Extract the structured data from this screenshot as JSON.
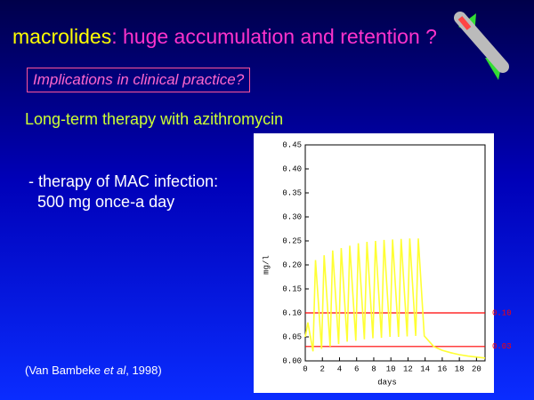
{
  "slide": {
    "title_main": "macrolides",
    "title_rest": ": huge accumulation and retention ?",
    "question": "Implications in clinical practice?",
    "subtitle": "Long-term therapy with azithromycin",
    "bullet_line1": "- therapy of MAC infection:",
    "bullet_line2": "500 mg once-a day",
    "citation_pre": "(Van Bambeke ",
    "citation_ital": "et al",
    "citation_post": ", 1998)"
  },
  "chart_data": {
    "type": "line",
    "x_label": "days",
    "y_label": "mg/l",
    "color": "#ffff33",
    "x": [
      0,
      0.3,
      0.9,
      1.2,
      1.9,
      2.2,
      2.9,
      3.2,
      3.9,
      4.2,
      4.9,
      5.2,
      5.9,
      6.2,
      6.9,
      7.2,
      7.9,
      8.2,
      8.9,
      9.2,
      9.9,
      10.2,
      10.9,
      11.2,
      11.9,
      12.2,
      12.9,
      13.2,
      13.9,
      15,
      16,
      17,
      18,
      19,
      20,
      21
    ],
    "values": [
      0.05,
      0.08,
      0.02,
      0.21,
      0.025,
      0.22,
      0.03,
      0.23,
      0.035,
      0.235,
      0.04,
      0.24,
      0.042,
      0.245,
      0.045,
      0.248,
      0.047,
      0.25,
      0.048,
      0.252,
      0.05,
      0.253,
      0.05,
      0.254,
      0.051,
      0.255,
      0.052,
      0.255,
      0.052,
      0.03,
      0.022,
      0.017,
      0.013,
      0.01,
      0.008,
      0.006
    ],
    "xlim": [
      0,
      21
    ],
    "xticks": [
      0,
      2,
      4,
      6,
      8,
      10,
      12,
      14,
      16,
      18,
      20
    ],
    "ylim": [
      0,
      0.45
    ],
    "yticks": [
      {
        "value": 0,
        "label": "0.00"
      },
      {
        "value": 0.05,
        "label": "0.05"
      },
      {
        "value": 0.1,
        "label": "0.10"
      },
      {
        "value": 0.15,
        "label": "0.15"
      },
      {
        "value": 0.2,
        "label": "0.20"
      },
      {
        "value": 0.25,
        "label": "0.25"
      },
      {
        "value": 0.3,
        "label": "0.30"
      },
      {
        "value": 0.35,
        "label": "0.35"
      },
      {
        "value": 0.4,
        "label": "0.40"
      },
      {
        "value": 0.45,
        "label": "0.45"
      }
    ],
    "reference_lines": [
      {
        "value": 0.1,
        "label": "0.10",
        "color": "#ff0000"
      },
      {
        "value": 0.03,
        "label": "0.03",
        "color": "#ff0000"
      }
    ]
  }
}
